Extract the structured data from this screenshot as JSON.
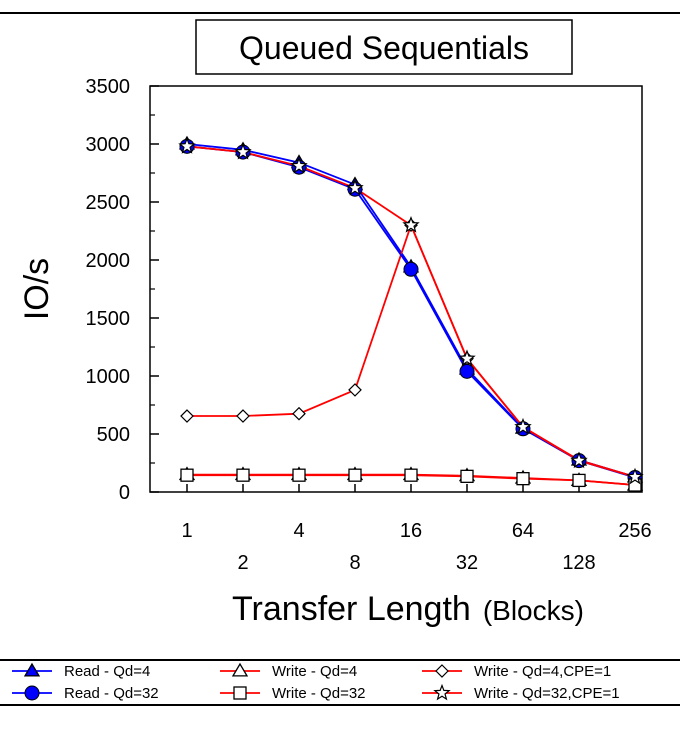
{
  "chart_data": {
    "type": "line",
    "title": "Queued Sequentials",
    "xlabel": "Transfer Length",
    "xlabel_unit": "(Blocks)",
    "ylabel": "IO/s",
    "x_scale": "log2",
    "x": [
      1,
      2,
      4,
      8,
      16,
      32,
      64,
      128,
      256
    ],
    "x_tick_labels": [
      "1",
      "2",
      "4",
      "8",
      "16",
      "32",
      "64",
      "128",
      "256"
    ],
    "ylim": [
      0,
      3500
    ],
    "y_ticks": [
      0,
      500,
      1000,
      1500,
      2000,
      2500,
      3000,
      3500
    ],
    "y_tick_labels": [
      "0",
      "500",
      "1000",
      "1500",
      "2000",
      "2500",
      "3000",
      "3500"
    ],
    "legend_position": "bottom",
    "series": [
      {
        "name": "Read - Qd=4",
        "color": "#0000ff",
        "marker": "triangle-filled",
        "values": [
          3000,
          2950,
          2840,
          2650,
          1940,
          1060,
          550,
          275,
          130
        ]
      },
      {
        "name": "Write - Qd=4",
        "color": "#ff0000",
        "marker": "triangle-open",
        "values": [
          150,
          150,
          150,
          150,
          150,
          140,
          120,
          100,
          60
        ]
      },
      {
        "name": "Write - Qd=4,CPE=1",
        "color": "#ff0000",
        "marker": "diamond-open",
        "values": [
          655,
          655,
          675,
          880,
          2300,
          1150,
          560,
          275,
          130
        ]
      },
      {
        "name": "Read - Qd=32",
        "color": "#0000ff",
        "marker": "circle-filled",
        "values": [
          2980,
          2930,
          2800,
          2610,
          1920,
          1040,
          545,
          270,
          125
        ]
      },
      {
        "name": "Write - Qd=32",
        "color": "#ff0000",
        "marker": "square-open",
        "values": [
          145,
          145,
          145,
          145,
          145,
          135,
          115,
          100,
          60
        ]
      },
      {
        "name": "Write - Qd=32,CPE=1",
        "color": "#ff0000",
        "marker": "star-open",
        "values": [
          2980,
          2930,
          2810,
          2620,
          2300,
          1150,
          560,
          270,
          130
        ]
      }
    ]
  }
}
